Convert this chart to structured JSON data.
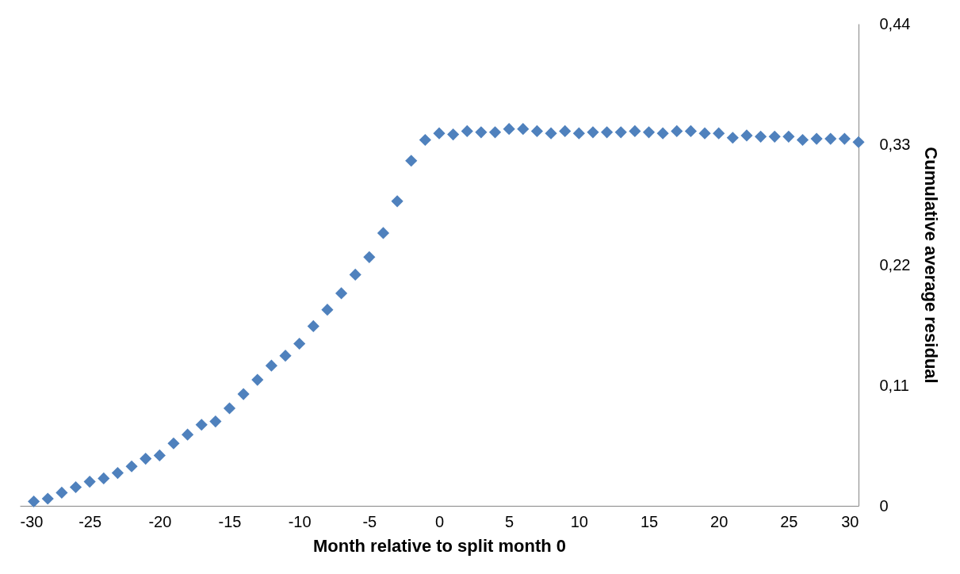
{
  "chart_data": {
    "type": "scatter",
    "xlabel": "Month relative to split month 0",
    "ylabel": "Cumulative average residual",
    "x": [
      -29,
      -28,
      -27,
      -26,
      -25,
      -24,
      -23,
      -22,
      -21,
      -20,
      -19,
      -18,
      -17,
      -16,
      -15,
      -14,
      -13,
      -12,
      -11,
      -10,
      -9,
      -8,
      -7,
      -6,
      -5,
      -4,
      -3,
      -2,
      -1,
      0,
      1,
      2,
      3,
      4,
      5,
      6,
      7,
      8,
      9,
      10,
      11,
      12,
      13,
      14,
      15,
      16,
      17,
      18,
      19,
      20,
      21,
      22,
      23,
      24,
      25,
      26,
      27,
      28,
      29,
      30
    ],
    "series": [
      {
        "color": "#4f81bd",
        "values": [
          0.004,
          0.0065,
          0.012,
          0.017,
          0.022,
          0.025,
          0.03,
          0.036,
          0.043,
          0.046,
          0.057,
          0.065,
          0.074,
          0.077,
          0.089,
          0.102,
          0.115,
          0.128,
          0.137,
          0.148,
          0.164,
          0.179,
          0.194,
          0.211,
          0.227,
          0.249,
          0.278,
          0.315,
          0.334,
          0.34,
          0.339,
          0.342,
          0.341,
          0.341,
          0.344,
          0.344,
          0.342,
          0.34,
          0.342,
          0.34,
          0.341,
          0.341,
          0.341,
          0.342,
          0.341,
          0.34,
          0.342,
          0.342,
          0.34,
          0.34,
          0.336,
          0.338,
          0.337,
          0.337,
          0.337,
          0.334,
          0.335,
          0.335,
          0.335,
          0.332
        ]
      }
    ],
    "xlim": [
      -30,
      30
    ],
    "xticks": [
      -30,
      -25,
      -20,
      -15,
      -10,
      -5,
      0,
      5,
      10,
      15,
      20,
      25,
      30
    ],
    "ylim": [
      0,
      0.44
    ],
    "yticks": [
      0,
      {
        "value": 0.11,
        "label": "0,11"
      },
      {
        "value": 0.22,
        "label": "0,22"
      },
      {
        "value": 0.33,
        "label": "0,33"
      },
      {
        "value": 0.44,
        "label": "0,44"
      }
    ],
    "grid": false,
    "marker": "diamond"
  }
}
